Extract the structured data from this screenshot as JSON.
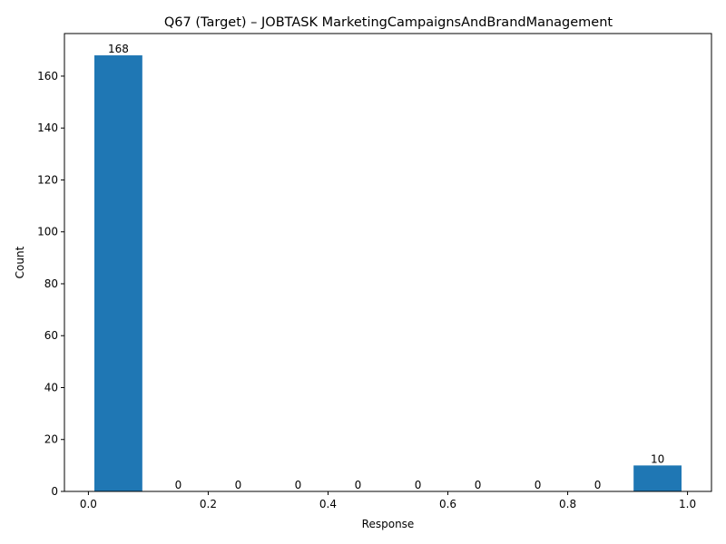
{
  "chart_data": {
    "type": "bar",
    "title": "Q67 (Target) – JOBTASK MarketingCampaignsAndBrandManagement",
    "xlabel": "Response",
    "ylabel": "Count",
    "xlim": [
      -0.04,
      1.04
    ],
    "ylim": [
      0,
      176.4
    ],
    "bin_edges": [
      0.0,
      0.1,
      0.2,
      0.3,
      0.4,
      0.5,
      0.6,
      0.7,
      0.8,
      0.9,
      1.0
    ],
    "bar_width_fraction": 0.8,
    "values": [
      168,
      0,
      0,
      0,
      0,
      0,
      0,
      0,
      0,
      10
    ],
    "data_labels": [
      "168",
      "0",
      "0",
      "0",
      "0",
      "0",
      "0",
      "0",
      "0",
      "10"
    ],
    "x_ticks": [
      0.0,
      0.2,
      0.4,
      0.6,
      0.8,
      1.0
    ],
    "x_tick_labels": [
      "0.0",
      "0.2",
      "0.4",
      "0.6",
      "0.8",
      "1.0"
    ],
    "y_ticks": [
      0,
      20,
      40,
      60,
      80,
      100,
      120,
      140,
      160
    ],
    "y_tick_labels": [
      "0",
      "20",
      "40",
      "60",
      "80",
      "100",
      "120",
      "140",
      "160"
    ],
    "grid": false,
    "bar_color": "#1f77b4"
  }
}
